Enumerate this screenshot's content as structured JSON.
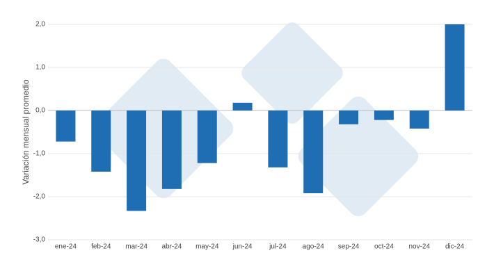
{
  "chart_data": {
    "type": "bar",
    "y_label": "Variación mensual promedio",
    "categories": [
      "ene-24",
      "feb-24",
      "mar-24",
      "abr-24",
      "may-24",
      "jun-24",
      "jul-24",
      "ago-24",
      "sep-24",
      "oct-24",
      "nov-24",
      "dic-24"
    ],
    "values": [
      -0.72,
      -1.42,
      -2.33,
      -1.82,
      -1.22,
      0.18,
      -1.32,
      -1.92,
      -0.32,
      -0.22,
      -0.42,
      2.0
    ],
    "color": "#1f6db3",
    "ylim": [
      -3,
      2
    ],
    "yticks": [
      {
        "value": -3,
        "label": "-3,0"
      },
      {
        "value": -2,
        "label": "-2,0"
      },
      {
        "value": -1,
        "label": "-1,0"
      },
      {
        "value": 0,
        "label": "0,0"
      },
      {
        "value": 1,
        "label": "1,0"
      },
      {
        "value": 2,
        "label": "2,0"
      }
    ],
    "grid": true
  }
}
